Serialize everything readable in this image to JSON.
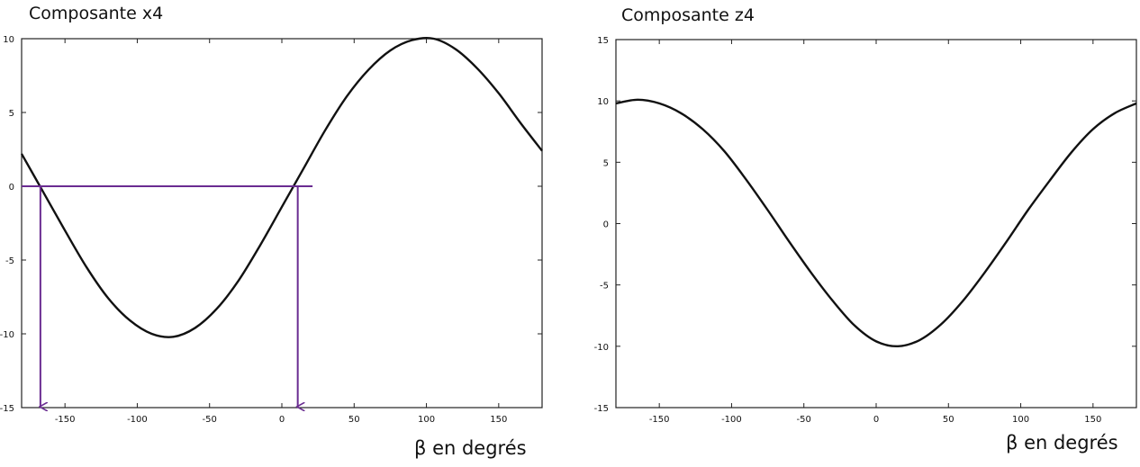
{
  "chart_data": [
    {
      "type": "line",
      "title": "Composante x4",
      "xlabel": "β en degrés",
      "ylabel": "",
      "xlim": [
        -180,
        180
      ],
      "ylim": [
        -15,
        10
      ],
      "xticks": [
        -150,
        -100,
        -50,
        0,
        50,
        100,
        150
      ],
      "yticks": [
        10,
        5,
        0,
        -5,
        -10,
        -15
      ],
      "series": [
        {
          "color": "#111111",
          "x": [
            -180,
            -165,
            -150,
            -135,
            -120,
            -105,
            -90,
            -75,
            -60,
            -45,
            -30,
            -15,
            0,
            15,
            30,
            45,
            60,
            75,
            90,
            105,
            120,
            135,
            150,
            165,
            180
          ],
          "y": [
            2.2,
            -0.4,
            -3.0,
            -5.5,
            -7.6,
            -9.1,
            -10.0,
            -10.2,
            -9.6,
            -8.3,
            -6.4,
            -4.0,
            -1.4,
            1.2,
            3.8,
            6.1,
            7.9,
            9.2,
            9.9,
            10.0,
            9.3,
            8.0,
            6.3,
            4.3,
            2.4
          ]
        }
      ],
      "annotations": {
        "color": "#6a2c91",
        "hline_y": 0,
        "hline_x": [
          -180,
          20
        ],
        "arrows_x": [
          -167,
          11
        ],
        "arrows_to_y": -15
      }
    },
    {
      "type": "line",
      "title": "Composante z4",
      "xlabel": "β en degrés",
      "ylabel": "",
      "xlim": [
        -180,
        180
      ],
      "ylim": [
        -15,
        15
      ],
      "xticks": [
        -150,
        -100,
        -50,
        0,
        50,
        100,
        150
      ],
      "yticks": [
        15,
        10,
        5,
        0,
        -5,
        -10,
        -15
      ],
      "series": [
        {
          "color": "#111111",
          "x": [
            -180,
            -165,
            -150,
            -135,
            -120,
            -105,
            -90,
            -75,
            -60,
            -45,
            -30,
            -15,
            0,
            15,
            30,
            45,
            60,
            75,
            90,
            105,
            120,
            135,
            150,
            165,
            180
          ],
          "y": [
            9.8,
            10.1,
            9.8,
            9.0,
            7.7,
            5.9,
            3.6,
            1.1,
            -1.5,
            -4.0,
            -6.3,
            -8.3,
            -9.6,
            -10.0,
            -9.5,
            -8.2,
            -6.3,
            -4.0,
            -1.5,
            1.1,
            3.5,
            5.8,
            7.7,
            9.0,
            9.8
          ]
        }
      ]
    }
  ]
}
